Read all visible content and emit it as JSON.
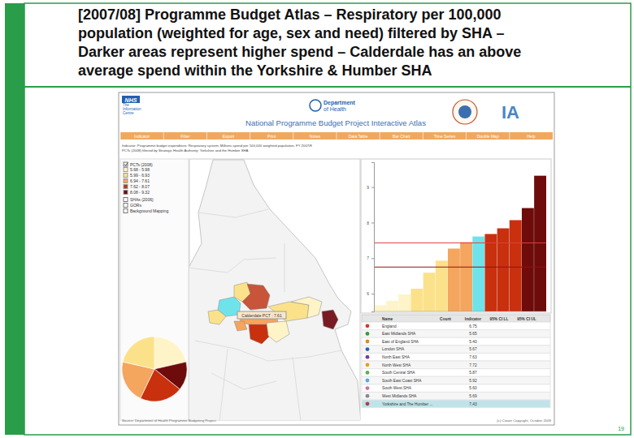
{
  "slide": {
    "title_lines": [
      "[2007/08] Programme Budget Atlas – Respiratory per 100,000",
      "population (weighted for age, sex and need) filtered by SHA –",
      "Darker areas represent higher spend – Calderdale has an above",
      "average spend within the Yorkshire & Humber SHA"
    ],
    "page_number": "19"
  },
  "app": {
    "nhs_logo": [
      "NHS",
      "The",
      "Information",
      "Centre"
    ],
    "dh_logo": [
      "Department",
      "of Health"
    ],
    "heading": "National Programme Budget Project Interactive Atlas",
    "ia_logo": "IA",
    "menu": [
      "Indicator",
      "Filter",
      "Export",
      "Print",
      "Notes",
      "Data Table",
      "Bar Chart",
      "Time Series",
      "Double Map",
      "Help"
    ],
    "indicator_lines": [
      "Indicator: Programme budget expenditure: Respiratory system; Millions spend per 100,000 weighted population, FY 2007/8",
      "PCTs (2008) filtered by Strategic Health Authority: Yorkshire and the Humber SHA"
    ],
    "footer_source": "Source: Department of Health Programme Budgeting Project",
    "footer_copyright": "(c) Crown Copyright, October 2009"
  },
  "legend": {
    "layer": "PCTs (2008)",
    "classes": [
      {
        "label": "5.68 - 5.98",
        "color": "#fff4c8"
      },
      {
        "label": "5.99 - 6.93",
        "color": "#fbe28a"
      },
      {
        "label": "6.94 - 7.61",
        "color": "#f4a55e"
      },
      {
        "label": "7.62 - 8.07",
        "color": "#c8300e"
      },
      {
        "label": "8.08 - 9.32",
        "color": "#6e0b0b"
      }
    ],
    "other_layers": [
      "SHAs (2006)",
      "GORs",
      "Background Mapping"
    ]
  },
  "map": {
    "label": "Calderdale PCT : 7.61",
    "colors": [
      "#6fe3ea",
      "#fbe28a",
      "#c8543a",
      "#f4a55e",
      "#c8300e",
      "#fff4c8",
      "#fbe28a",
      "#fff4c8",
      "#7a1a22",
      "#f4a55e",
      "#fbe28a"
    ]
  },
  "pie": {
    "values": [
      3,
      2,
      3,
      3,
      3
    ],
    "colors": [
      "#fff4c8",
      "#6e0b0b",
      "#c8300e",
      "#f4a55e",
      "#fbe28a"
    ]
  },
  "chart_data": {
    "type": "bar",
    "categories": [
      null,
      null,
      null,
      null,
      null,
      null,
      null,
      null,
      null,
      null,
      null,
      null,
      null,
      null
    ],
    "values": [
      5.68,
      5.8,
      5.98,
      6.14,
      6.59,
      6.93,
      7.27,
      7.45,
      7.61,
      7.68,
      7.84,
      8.07,
      8.41,
      9.32
    ],
    "colors": [
      "#fff4c8",
      "#fff4c8",
      "#fff4c8",
      "#fbe28a",
      "#fbe28a",
      "#fbe28a",
      "#f4a55e",
      "#f4a55e",
      "#6fe3ea",
      "#c8300e",
      "#c8300e",
      "#c8300e",
      "#6e0b0b",
      "#6e0b0b"
    ],
    "ylim": [
      5.5,
      9.7
    ],
    "yticks": [
      6,
      7,
      8,
      9
    ],
    "reference_lines": [
      7.43,
      6.75
    ],
    "grid": false,
    "tick_labels": "y"
  },
  "table": {
    "columns": [
      "Name",
      "Count",
      "Indicator",
      "95% CI LL",
      "95% CI UL"
    ],
    "rows": [
      {
        "name": "England",
        "indicator": "6.75",
        "color": "#d33a2c"
      },
      {
        "name": "East Midlands SHA",
        "indicator": "5.65",
        "color": "#3a9a3a"
      },
      {
        "name": "East of England SHA",
        "indicator": "5.40",
        "color": "#e08a1e"
      },
      {
        "name": "London SHA",
        "indicator": "5.67",
        "color": "#2f5fb0"
      },
      {
        "name": "North East SHA",
        "indicator": "7.63",
        "color": "#7a3a9a"
      },
      {
        "name": "North West SHA",
        "indicator": "7.72",
        "color": "#e0a020"
      },
      {
        "name": "South Central SHA",
        "indicator": "5.87",
        "color": "#5ab05a"
      },
      {
        "name": "South East Coast SHA",
        "indicator": "5.92",
        "color": "#60a8e0"
      },
      {
        "name": "South West SHA",
        "indicator": "5.60",
        "color": "#d070a0"
      },
      {
        "name": "West Midlands SHA",
        "indicator": "5.69",
        "color": "#8a8a8a"
      },
      {
        "name": "Yorkshire and The Humber ...",
        "indicator": "7.43",
        "color": "#b04040"
      }
    ]
  }
}
